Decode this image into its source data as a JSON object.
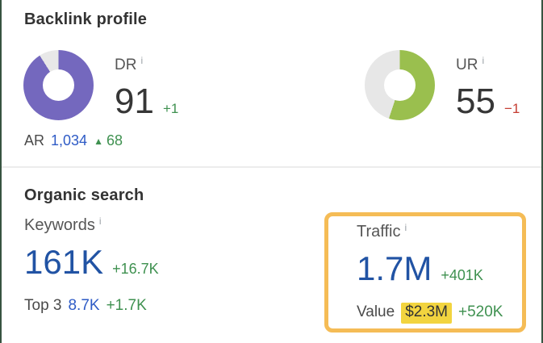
{
  "page": {
    "bg": "#ffffff",
    "edge_border": "#375441",
    "divider": "#ececec"
  },
  "colors": {
    "heading_text": "#333333",
    "label_text": "#565656",
    "info_icon": "#9aa0a6",
    "number_dark": "#363636",
    "number_blue": "#2153a4",
    "link_blue": "#2e5bc6",
    "delta_green": "#3f9150",
    "delta_red": "#c53c31",
    "donut_purple": "#7468be",
    "donut_green": "#9abf4e",
    "donut_track": "#e8e8e8",
    "callout_orange": "#f5bc56",
    "highlight_yellow": "#f2d43f"
  },
  "backlink_profile": {
    "title": "Backlink profile",
    "dr": {
      "label": "DR",
      "info": "i",
      "value": "91",
      "delta": "+1",
      "donut": {
        "percent": 91,
        "color": "#7468be",
        "track": "#e8e8e8"
      }
    },
    "ur": {
      "label": "UR",
      "info": "i",
      "value": "55",
      "delta": "−1",
      "donut": {
        "percent": 55,
        "color": "#9abf4e",
        "track": "#e7e7e7"
      }
    },
    "ar": {
      "label": "AR",
      "value": "1,034",
      "delta_icon": "▲",
      "delta": "68"
    }
  },
  "organic_search": {
    "title": "Organic search",
    "keywords": {
      "label": "Keywords",
      "info": "i",
      "value": "161K",
      "delta": "+16.7K"
    },
    "top3": {
      "label": "Top 3",
      "value": "8.7K",
      "delta": "+1.7K"
    },
    "traffic": {
      "label": "Traffic",
      "info": "i",
      "value": "1.7M",
      "delta": "+401K"
    },
    "value": {
      "label": "Value",
      "amount": "$2.3M",
      "delta": "+520K"
    }
  }
}
